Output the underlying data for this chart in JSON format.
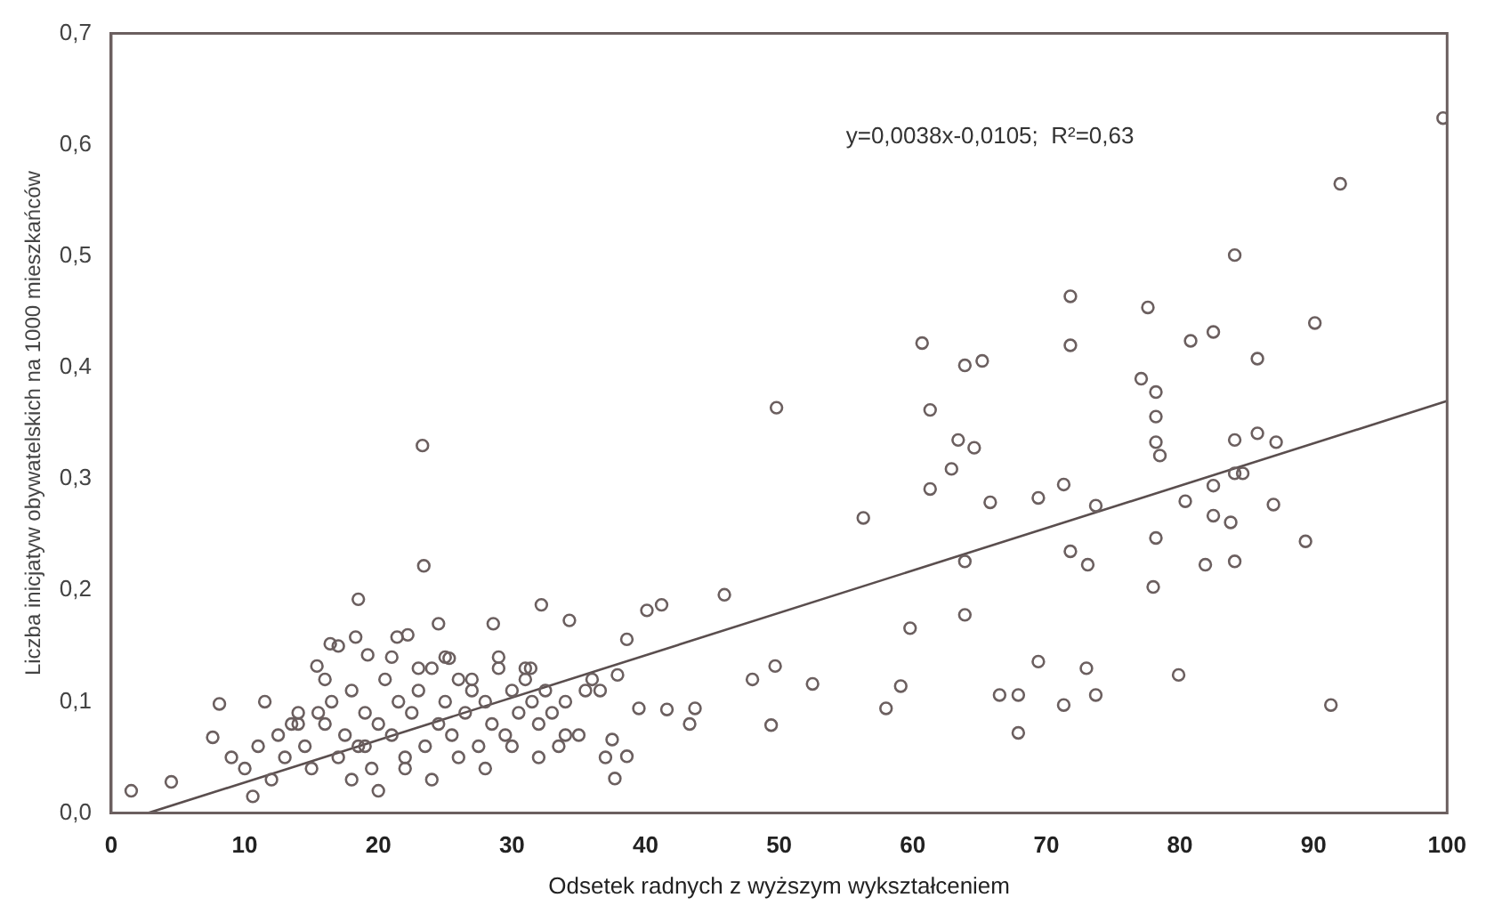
{
  "chart_data": {
    "type": "scatter",
    "xlabel": "Odsetek radnych z wyższym wykształceniem",
    "ylabel": "Liczba inicjatyw obywatelskich na 1000 mieszkańców",
    "annotations": [
      "y=0,0038x-0,0105;  R²=0,63"
    ],
    "xlim": [
      0,
      100
    ],
    "xticks": [
      0,
      10,
      20,
      30,
      40,
      50,
      60,
      70,
      80,
      90,
      100
    ],
    "ylim": [
      0,
      0.7
    ],
    "yticks": [
      {
        "value": 0,
        "label": "0,0"
      },
      {
        "value": 0.1,
        "label": "0,1"
      },
      {
        "value": 0.2,
        "label": "0,2"
      },
      {
        "value": 0.3,
        "label": "0,3"
      },
      {
        "value": 0.4,
        "label": "0,4"
      },
      {
        "value": 0.5,
        "label": "0,5"
      },
      {
        "value": 0.6,
        "label": "0,6"
      },
      {
        "value": 0.7,
        "label": "0,7"
      }
    ],
    "grid": false,
    "legend": false,
    "marker": "circle",
    "series": [
      {
        "color": "#6b5f5f",
        "x": [
          71.8,
          77.6,
          90.1,
          80.8,
          82.5,
          71.8,
          85.8,
          63.9,
          65.2,
          77.1,
          78.2,
          78.2,
          63.4,
          64.6,
          78.2,
          78.5,
          84.1,
          85.8,
          87.2,
          62.9,
          71.3,
          69.4,
          65.8,
          73.7,
          80.4,
          82.5,
          84.1,
          84.7,
          87.0,
          82.5,
          83.8,
          89.4,
          78.2,
          63.9,
          71.8,
          73.1,
          81.9,
          84.1,
          78.0,
          63.9,
          69.4,
          73.0,
          79.9,
          66.5,
          67.9,
          73.7,
          71.3,
          91.3,
          67.9,
          99.7,
          92.0,
          84.1,
          60.7,
          49.8,
          61.3,
          61.3,
          56.3,
          45.9,
          32.2,
          34.3,
          40.1,
          41.2,
          38.6,
          59.8,
          49.7,
          48.0,
          52.5,
          59.1,
          58.0,
          49.4,
          43.7,
          41.6,
          39.5,
          37.9,
          36.6,
          43.3,
          37.7,
          38.6,
          37.5,
          23.4,
          18.5,
          24.5,
          28.6,
          16.4,
          18.3,
          21.4,
          22.2,
          8.1,
          7.6,
          4.5,
          10.6,
          15.4,
          19.2,
          25.3,
          31.4,
          23.3,
          1.5,
          9,
          10,
          11,
          12,
          12.5,
          13,
          14,
          14.5,
          15,
          16,
          16.5,
          17,
          17.5,
          18,
          18.5,
          19,
          19.5,
          20,
          20.5,
          21,
          21.5,
          22,
          22.5,
          23,
          23.5,
          24,
          24.5,
          25,
          25.5,
          26,
          26.5,
          27,
          27.5,
          28,
          28.5,
          29,
          29.5,
          30,
          30.5,
          31,
          31.5,
          32,
          32.5,
          33,
          34,
          35,
          36,
          13.5,
          15.5,
          18,
          20,
          22,
          24,
          26,
          28,
          30,
          32,
          34,
          19,
          21,
          23,
          25,
          27,
          29,
          31,
          17,
          11.5,
          14,
          16,
          35.5,
          33.5,
          37
        ],
        "values": [
          0.464,
          0.454,
          0.44,
          0.424,
          0.432,
          0.42,
          0.408,
          0.402,
          0.406,
          0.39,
          0.378,
          0.356,
          0.335,
          0.328,
          0.333,
          0.321,
          0.335,
          0.341,
          0.333,
          0.309,
          0.295,
          0.283,
          0.279,
          0.276,
          0.28,
          0.294,
          0.305,
          0.305,
          0.277,
          0.267,
          0.261,
          0.244,
          0.247,
          0.226,
          0.235,
          0.223,
          0.223,
          0.226,
          0.203,
          0.178,
          0.136,
          0.13,
          0.124,
          0.106,
          0.106,
          0.106,
          0.097,
          0.097,
          0.072,
          0.624,
          0.565,
          0.501,
          0.422,
          0.364,
          0.362,
          0.291,
          0.265,
          0.196,
          0.187,
          0.173,
          0.182,
          0.187,
          0.156,
          0.166,
          0.132,
          0.12,
          0.116,
          0.114,
          0.094,
          0.079,
          0.094,
          0.093,
          0.094,
          0.124,
          0.11,
          0.08,
          0.031,
          0.051,
          0.066,
          0.222,
          0.192,
          0.17,
          0.17,
          0.152,
          0.158,
          0.158,
          0.16,
          0.098,
          0.068,
          0.028,
          0.015,
          0.132,
          0.142,
          0.139,
          0.13,
          0.33,
          0.02,
          0.05,
          0.04,
          0.06,
          0.03,
          0.07,
          0.05,
          0.09,
          0.06,
          0.04,
          0.08,
          0.1,
          0.05,
          0.07,
          0.11,
          0.06,
          0.09,
          0.04,
          0.08,
          0.12,
          0.07,
          0.1,
          0.05,
          0.09,
          0.11,
          0.06,
          0.13,
          0.08,
          0.1,
          0.07,
          0.12,
          0.09,
          0.11,
          0.06,
          0.1,
          0.08,
          0.13,
          0.07,
          0.11,
          0.09,
          0.12,
          0.1,
          0.08,
          0.11,
          0.09,
          0.1,
          0.07,
          0.12,
          0.08,
          0.09,
          0.03,
          0.02,
          0.04,
          0.03,
          0.05,
          0.04,
          0.06,
          0.05,
          0.07,
          0.06,
          0.14,
          0.13,
          0.14,
          0.12,
          0.14,
          0.13,
          0.15,
          0.1,
          0.08,
          0.12,
          0.11,
          0.06,
          0.05
        ]
      },
      {
        "type": "line",
        "marker": "none",
        "color": "#5a4e4e",
        "x": [
          2.76,
          100
        ],
        "values": [
          0,
          0.37
        ]
      }
    ]
  }
}
